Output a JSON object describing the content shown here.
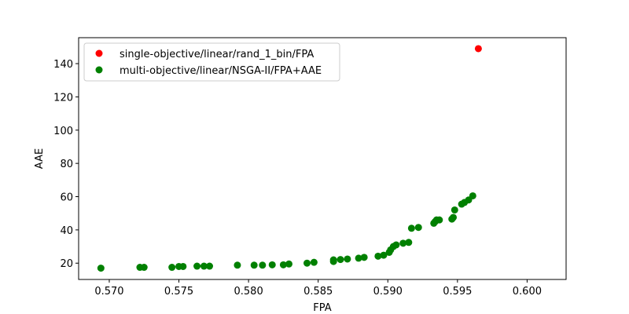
{
  "chart_data": {
    "type": "scatter",
    "xlabel": "FPA",
    "ylabel": "AAE",
    "xlim": [
      0.5678,
      0.6028
    ],
    "ylim": [
      10.2,
      155.6
    ],
    "xticks": [
      0.57,
      0.575,
      0.58,
      0.585,
      0.59,
      0.595,
      0.6
    ],
    "xtick_labels": [
      "0.570",
      "0.575",
      "0.580",
      "0.585",
      "0.590",
      "0.595",
      "0.600"
    ],
    "yticks": [
      20,
      40,
      60,
      80,
      100,
      120,
      140
    ],
    "ytick_labels": [
      "20",
      "40",
      "60",
      "80",
      "100",
      "120",
      "140"
    ],
    "grid": false,
    "legend_position": "top-left",
    "series": [
      {
        "name": "single-objective/linear/rand_1_bin/FPA",
        "color": "#ff0000",
        "points": [
          [
            0.5965,
            149.0
          ]
        ]
      },
      {
        "name": "multi-objective/linear/NSGA-II/FPA+AAE",
        "color": "#008000",
        "points": [
          [
            0.5694,
            17.0
          ],
          [
            0.5722,
            17.5
          ],
          [
            0.5725,
            17.5
          ],
          [
            0.5745,
            17.5
          ],
          [
            0.575,
            18.0
          ],
          [
            0.5753,
            18.0
          ],
          [
            0.5763,
            18.2
          ],
          [
            0.5768,
            18.2
          ],
          [
            0.5772,
            18.2
          ],
          [
            0.5792,
            18.8
          ],
          [
            0.5804,
            18.8
          ],
          [
            0.581,
            18.8
          ],
          [
            0.5817,
            19.0
          ],
          [
            0.5825,
            19.0
          ],
          [
            0.5829,
            19.5
          ],
          [
            0.5842,
            20.0
          ],
          [
            0.5847,
            20.5
          ],
          [
            0.5861,
            21.0
          ],
          [
            0.5861,
            22.0
          ],
          [
            0.5866,
            22.2
          ],
          [
            0.5871,
            22.5
          ],
          [
            0.5879,
            23.0
          ],
          [
            0.5883,
            23.5
          ],
          [
            0.5893,
            24.2
          ],
          [
            0.5897,
            24.8
          ],
          [
            0.5901,
            26.5
          ],
          [
            0.5902,
            28.0
          ],
          [
            0.5904,
            30.0
          ],
          [
            0.5906,
            31.0
          ],
          [
            0.5911,
            32.0
          ],
          [
            0.5915,
            32.5
          ],
          [
            0.5917,
            41.0
          ],
          [
            0.5922,
            41.5
          ],
          [
            0.5933,
            44.0
          ],
          [
            0.5934,
            45.0
          ],
          [
            0.5935,
            46.0
          ],
          [
            0.5937,
            46.0
          ],
          [
            0.5946,
            46.5
          ],
          [
            0.5947,
            47.5
          ],
          [
            0.5948,
            52.0
          ],
          [
            0.5953,
            55.5
          ],
          [
            0.5955,
            56.5
          ],
          [
            0.5958,
            58.0
          ],
          [
            0.5961,
            60.5
          ]
        ]
      }
    ]
  }
}
